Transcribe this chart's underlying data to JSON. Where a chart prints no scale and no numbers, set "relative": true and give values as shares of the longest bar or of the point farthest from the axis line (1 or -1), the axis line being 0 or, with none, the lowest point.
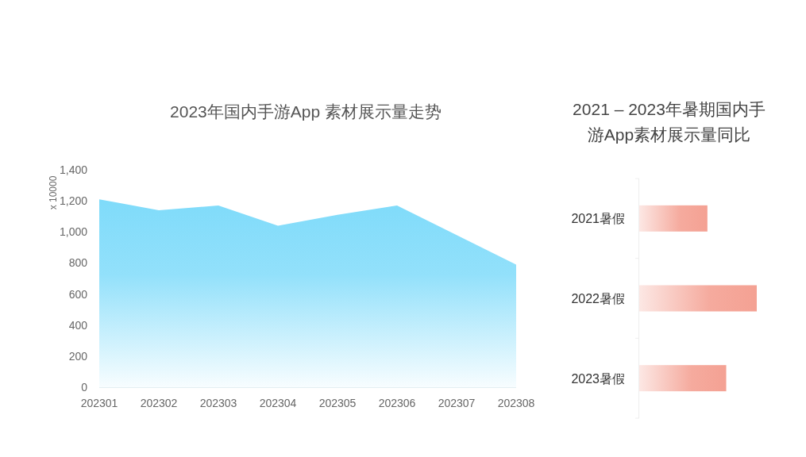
{
  "chart_data": [
    {
      "type": "area",
      "title": "2023年国内手游App 素材展示量走势",
      "ylabel": "x 10000",
      "categories": [
        "202301",
        "202302",
        "202303",
        "202304",
        "202305",
        "202306",
        "202307",
        "202308"
      ],
      "values": [
        1210,
        1140,
        1170,
        1040,
        1110,
        1170,
        980,
        790
      ],
      "color": "#7fdbfa",
      "ylim": [
        0,
        1400
      ],
      "yticks": [
        0,
        200,
        400,
        600,
        800,
        {
          "value": 1000,
          "label": "1,000"
        },
        {
          "value": 1200,
          "label": "1,200"
        },
        {
          "value": 1400,
          "label": "1,400"
        }
      ]
    },
    {
      "type": "bar",
      "orientation": "horizontal",
      "relative": true,
      "title": "2021 – 2023年暑期国内手游App素材展示量同比",
      "categories": [
        "2021暑假",
        "2022暑假",
        "2023暑假"
      ],
      "values": [
        0.58,
        1,
        0.74
      ],
      "color": "#f4a193"
    }
  ]
}
